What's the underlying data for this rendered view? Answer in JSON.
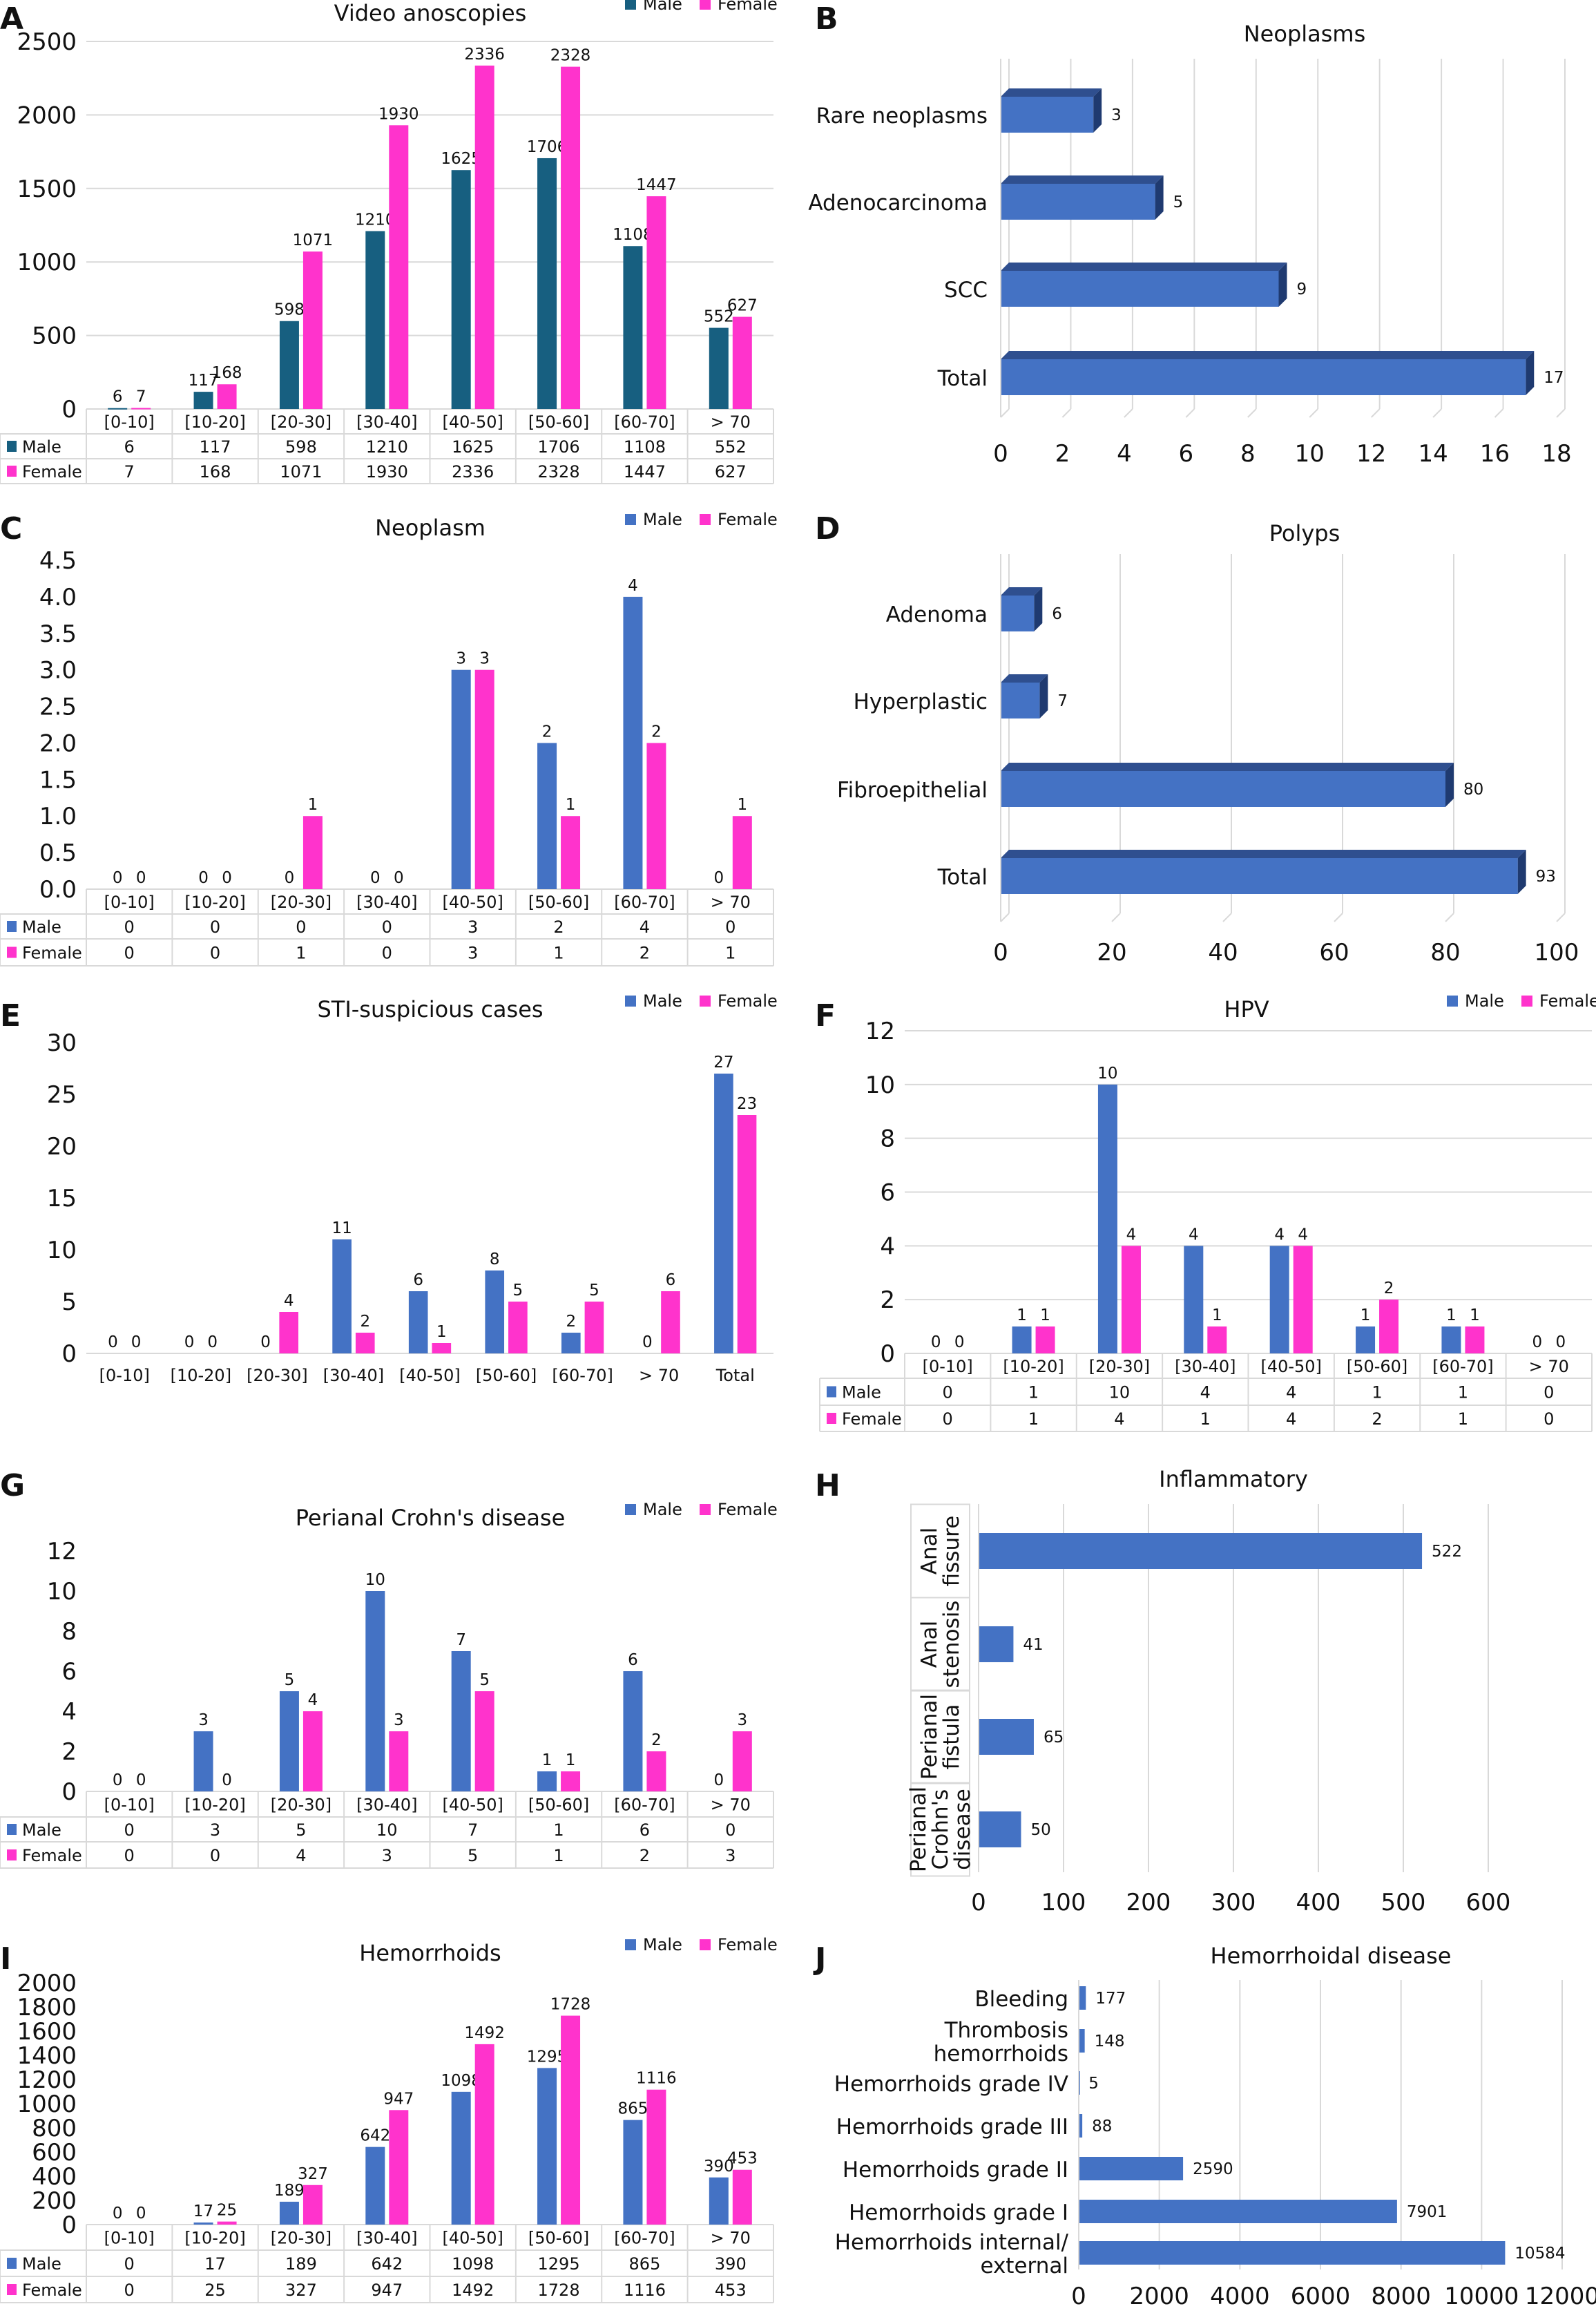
{
  "chart_data": [
    {
      "panel": "A",
      "type": "bar",
      "title": "Video anoscopies",
      "categories": [
        "[0-10]",
        "[10-20]",
        "[20-30]",
        "[30-40]",
        "[40-50]",
        "[50-60]",
        "[60-70]",
        "> 70"
      ],
      "series": [
        {
          "name": "Male",
          "values": [
            6,
            117,
            598,
            1210,
            1625,
            1706,
            1108,
            552
          ]
        },
        {
          "name": "Female",
          "values": [
            7,
            168,
            1071,
            1930,
            2336,
            2328,
            1447,
            627
          ]
        }
      ],
      "ylim": [
        0,
        2500
      ],
      "ytick_labels": [
        "0",
        "500",
        "1000",
        "1500",
        "2000",
        "2500"
      ],
      "table": true,
      "grid": true,
      "legend": "top-right",
      "colors": [
        "#175f80",
        "#ff33cc"
      ]
    },
    {
      "panel": "B",
      "type": "bar",
      "orientation": "horizontal",
      "style": "3d",
      "title": "Neoplasms",
      "categories": [
        "Rare neoplasms",
        "Adenocarcinoma",
        "SCC",
        "Total"
      ],
      "values": [
        3,
        5,
        9,
        17
      ],
      "xlim": [
        0,
        18
      ],
      "xtick_labels": [
        "0",
        "2",
        "4",
        "6",
        "8",
        "10",
        "12",
        "14",
        "16",
        "18"
      ],
      "grid": true,
      "colors": [
        "#4472c4"
      ]
    },
    {
      "panel": "C",
      "type": "bar",
      "title": "Neoplasm",
      "categories": [
        "[0-10]",
        "[10-20]",
        "[20-30]",
        "[30-40]",
        "[40-50]",
        "[50-60]",
        "[60-70]",
        "> 70"
      ],
      "series": [
        {
          "name": "Male",
          "values": [
            0,
            0,
            0,
            0,
            3,
            2,
            4,
            0
          ]
        },
        {
          "name": "Female",
          "values": [
            0,
            0,
            1,
            0,
            3,
            1,
            2,
            1
          ]
        }
      ],
      "ylim": [
        0,
        4.5
      ],
      "ytick_labels": [
        "0.0",
        "0.5",
        "1.0",
        "1.5",
        "2.0",
        "2.5",
        "3.0",
        "3.5",
        "4.0",
        "4.5"
      ],
      "table": true,
      "grid": false,
      "legend": "top-right",
      "colors": [
        "#4472c4",
        "#ff33cc"
      ]
    },
    {
      "panel": "D",
      "type": "bar",
      "orientation": "horizontal",
      "style": "3d",
      "title": "Polyps",
      "categories": [
        "Adenoma",
        "Hyperplastic",
        "Fibroepithelial",
        "Total"
      ],
      "values": [
        6,
        7,
        80,
        93
      ],
      "xlim": [
        0,
        100
      ],
      "xtick_labels": [
        "0",
        "20",
        "40",
        "60",
        "80",
        "100"
      ],
      "grid": true,
      "colors": [
        "#4472c4"
      ]
    },
    {
      "panel": "E",
      "type": "bar",
      "title": "STI-suspicious cases",
      "categories": [
        "[0-10]",
        "[10-20]",
        "[20-30]",
        "[30-40]",
        "[40-50]",
        "[50-60]",
        "[60-70]",
        "> 70",
        "Total"
      ],
      "series": [
        {
          "name": "Male",
          "values": [
            0,
            0,
            0,
            11,
            6,
            8,
            2,
            0,
            27
          ]
        },
        {
          "name": "Female",
          "values": [
            0,
            0,
            4,
            2,
            1,
            5,
            5,
            6,
            23
          ]
        }
      ],
      "ylim": [
        0,
        30
      ],
      "ytick_labels": [
        "0",
        "5",
        "10",
        "15",
        "20",
        "25",
        "30"
      ],
      "table": false,
      "grid": false,
      "legend": "top-right",
      "colors": [
        "#4472c4",
        "#ff33cc"
      ]
    },
    {
      "panel": "F",
      "type": "bar",
      "title": "HPV",
      "categories": [
        "[0-10]",
        "[10-20]",
        "[20-30]",
        "[30-40]",
        "[40-50]",
        "[50-60]",
        "[60-70]",
        "> 70"
      ],
      "series": [
        {
          "name": "Male",
          "values": [
            0,
            1,
            10,
            4,
            4,
            1,
            1,
            0
          ]
        },
        {
          "name": "Female",
          "values": [
            0,
            1,
            4,
            1,
            4,
            2,
            1,
            0
          ]
        }
      ],
      "ylim": [
        0,
        12
      ],
      "ytick_labels": [
        "0",
        "2",
        "4",
        "6",
        "8",
        "10",
        "12"
      ],
      "table": true,
      "grid": true,
      "legend": "top-right",
      "colors": [
        "#4472c4",
        "#ff33cc"
      ]
    },
    {
      "panel": "G",
      "type": "bar",
      "title": "Perianal Crohn's disease",
      "categories": [
        "[0-10]",
        "[10-20]",
        "[20-30]",
        "[30-40]",
        "[40-50]",
        "[50-60]",
        "[60-70]",
        "> 70"
      ],
      "series": [
        {
          "name": "Male",
          "values": [
            0,
            3,
            5,
            10,
            7,
            1,
            6,
            0
          ]
        },
        {
          "name": "Female",
          "values": [
            0,
            0,
            4,
            3,
            5,
            1,
            2,
            3
          ]
        }
      ],
      "ylim": [
        0,
        12
      ],
      "ytick_labels": [
        "0",
        "2",
        "4",
        "6",
        "8",
        "10",
        "12"
      ],
      "table": true,
      "grid": false,
      "legend": "top-right",
      "colors": [
        "#4472c4",
        "#ff33cc"
      ]
    },
    {
      "panel": "H",
      "type": "bar",
      "orientation": "horizontal",
      "title": "Inflammatory",
      "categories": [
        [
          "Anal",
          "fissure"
        ],
        [
          "Anal",
          "stenosis"
        ],
        [
          "Perianal",
          "fistula"
        ],
        [
          "Perianal",
          "Crohn's",
          "disease"
        ]
      ],
      "values": [
        522,
        41,
        65,
        50
      ],
      "xlim": [
        0,
        600
      ],
      "xtick_labels": [
        "0",
        "100",
        "200",
        "300",
        "400",
        "500",
        "600"
      ],
      "grid": true,
      "colors": [
        "#4472c4"
      ]
    },
    {
      "panel": "I",
      "type": "bar",
      "title": "Hemorrhoids",
      "categories": [
        "[0-10]",
        "[10-20]",
        "[20-30]",
        "[30-40]",
        "[40-50]",
        "[50-60]",
        "[60-70]",
        "> 70"
      ],
      "series": [
        {
          "name": "Male",
          "values": [
            0,
            17,
            189,
            642,
            1098,
            1295,
            865,
            390
          ]
        },
        {
          "name": "Female",
          "values": [
            0,
            25,
            327,
            947,
            1492,
            1728,
            1116,
            453
          ]
        }
      ],
      "ylim": [
        0,
        2000
      ],
      "ytick_labels": [
        "0",
        "200",
        "400",
        "600",
        "800",
        "1000",
        "1200",
        "1400",
        "1600",
        "1800",
        "2000"
      ],
      "table": true,
      "grid": false,
      "legend": "top-right",
      "colors": [
        "#4472c4",
        "#ff33cc"
      ]
    },
    {
      "panel": "J",
      "type": "bar",
      "orientation": "horizontal",
      "title": "Hemorrhoidal disease",
      "categories": [
        [
          "Bleeding"
        ],
        [
          "Thrombosis",
          "hemorrhoids"
        ],
        [
          "Hemorrhoids grade IV"
        ],
        [
          "Hemorrhoids grade III"
        ],
        [
          "Hemorrhoids grade II"
        ],
        [
          "Hemorrhoids grade I"
        ],
        [
          "Hemorrhoids internal/",
          "external"
        ]
      ],
      "values": [
        177,
        148,
        5,
        88,
        2590,
        7901,
        10584
      ],
      "xlim": [
        0,
        12000
      ],
      "xtick_labels": [
        "0",
        "2000",
        "4000",
        "6000",
        "8000",
        "10000",
        "12000"
      ],
      "grid": true,
      "colors": [
        "#4472c4"
      ]
    }
  ]
}
